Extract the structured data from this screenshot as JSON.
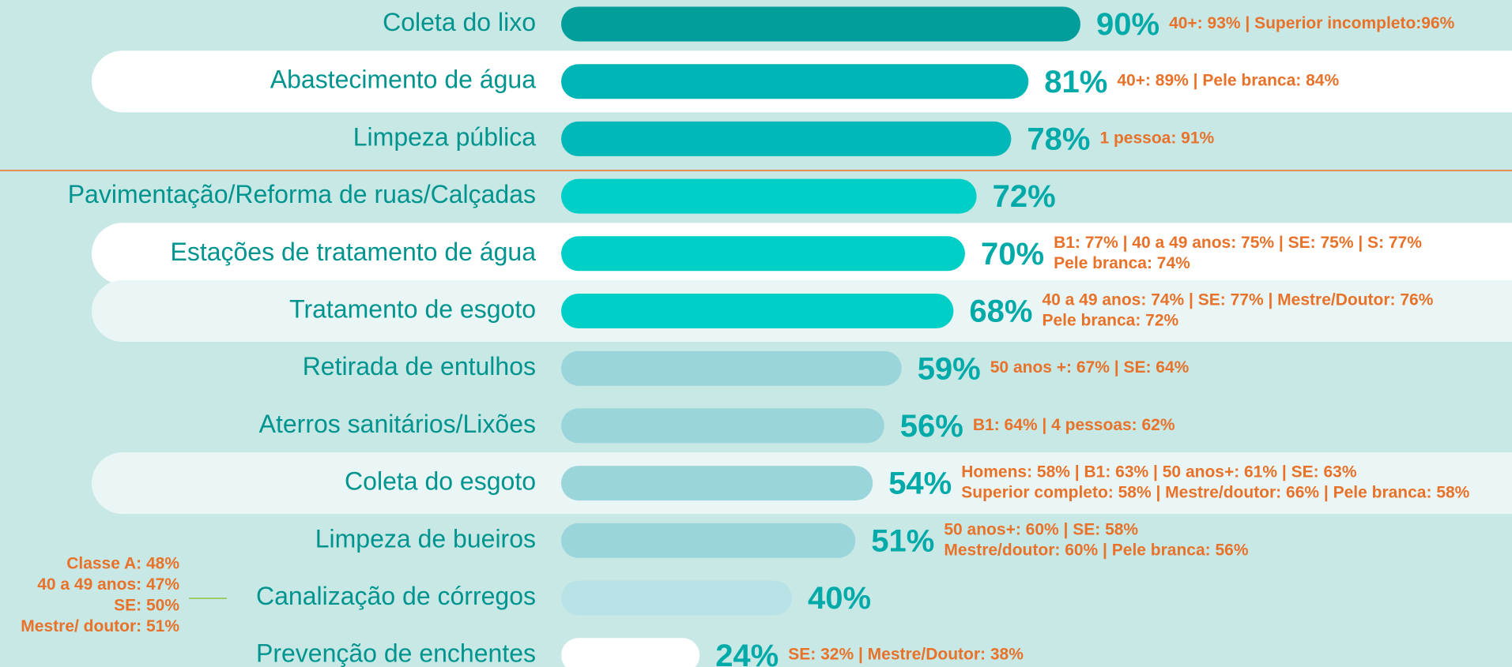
{
  "chart_data": {
    "type": "bar",
    "orientation": "horizontal",
    "categories": [
      "Coleta do lixo",
      "Abastecimento de água",
      "Limpeza pública",
      "Pavimentação/Reforma de ruas/Calçadas",
      "Estações de tratamento de água",
      "Tratamento de esgoto",
      "Retirada de entulhos",
      "Aterros sanitários/Lixões",
      "Coleta do esgoto",
      "Limpeza de bueiros",
      "Canalização de córregos",
      "Prevenção de enchentes"
    ],
    "values": [
      90,
      81,
      78,
      72,
      70,
      68,
      59,
      56,
      54,
      51,
      40,
      24
    ],
    "value_labels": [
      "90%",
      "81%",
      "78%",
      "72%",
      "70%",
      "68%",
      "59%",
      "56%",
      "54%",
      "51%",
      "40%",
      "24%"
    ],
    "colors": [
      "#009e9a",
      "#00b5b5",
      "#00b8b8",
      "#00cfc8",
      "#00cfc8",
      "#00cfc8",
      "#99d5da",
      "#99d5da",
      "#99d5da",
      "#99d5da",
      "#b8e2e6",
      "#ffffff"
    ],
    "notes": [
      [
        "40+: 93% | Superior incompleto:96%"
      ],
      [
        "40+: 89% | Pele branca: 84%"
      ],
      [
        "1 pessoa: 91%"
      ],
      [],
      [
        "B1: 77% | 40 a 49 anos: 75% | SE: 75% | S: 77%",
        "Pele branca: 74%"
      ],
      [
        "40 a 49 anos: 74% | SE: 77% | Mestre/Doutor: 76%",
        "Pele branca: 72%"
      ],
      [
        "50 anos +: 67% | SE: 64%"
      ],
      [
        "B1: 64% | 4 pessoas: 62%"
      ],
      [
        "Homens: 58% | B1: 63% | 50 anos+: 61% | SE: 63%",
        "Superior completo: 58% | Mestre/doutor: 66% | Pele branca: 58%"
      ],
      [
        "50 anos+: 60% | SE: 58%",
        "Mestre/doutor: 60% | Pele branca: 56%"
      ],
      [],
      [
        "SE: 32% | Mestre/Doutor: 38%"
      ]
    ],
    "side_note": [
      "Classe A: 48%",
      "40 a 49 anos: 47%",
      "SE: 50%",
      "Mestre/ doutor: 51%"
    ],
    "xlim": [
      0,
      100
    ]
  }
}
